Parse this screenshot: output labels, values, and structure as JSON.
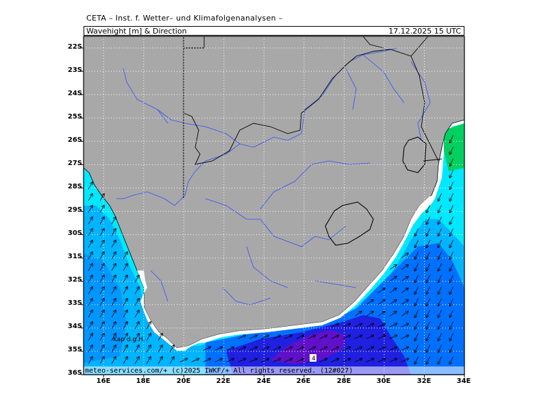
{
  "header": {
    "top_title": "CETA – Inst. f. Wetter– und Klimafolgenanalysen –",
    "variable": "Wavehight [m] & Direction",
    "run_time": "17.12.2025 15 UTC"
  },
  "map": {
    "lat_labels": [
      "22S",
      "23S",
      "24S",
      "25S",
      "26S",
      "27S",
      "28S",
      "29S",
      "30S",
      "31S",
      "32S",
      "33S",
      "34S",
      "35S",
      "36S"
    ],
    "lon_labels": [
      "16E",
      "18E",
      "20E",
      "22E",
      "24E",
      "26E",
      "28E",
      "30E",
      "32E",
      "34E"
    ],
    "place_label": "Kap d.g.H.",
    "contour_label": "4",
    "copyright": "meteo-services.com/+ (c)2025 IWKF/+ All rights reserved. (12#027)",
    "colors": {
      "land": "#a8a8a8",
      "sea_light": "#00e8ff",
      "sea_mid": "#00b4ff",
      "sea_blue": "#0070ff",
      "sea_deep": "#2020e0",
      "sea_max": "#6010c8",
      "coast_green": "#00d060",
      "river": "#3050ff",
      "border": "#000000"
    }
  }
}
